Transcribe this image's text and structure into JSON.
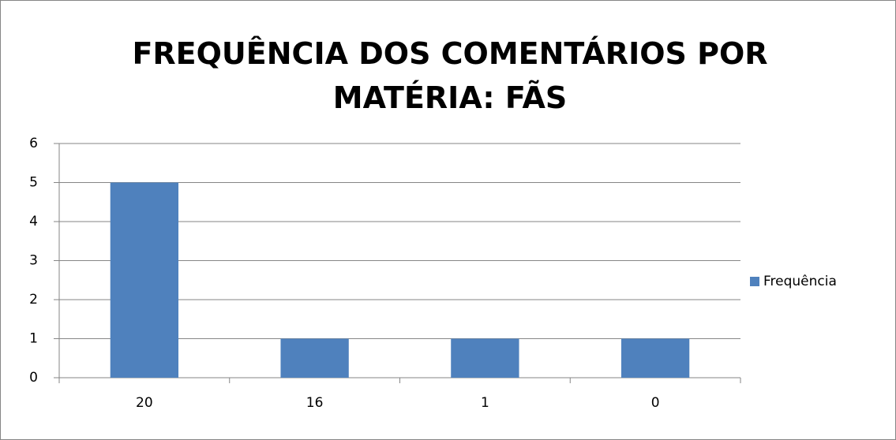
{
  "chart_data": {
    "type": "bar",
    "title": "FREQUÊNCIA DOS COMENTÁRIOS POR MATÉRIA: FÃS",
    "categories": [
      "20",
      "16",
      "1",
      "0"
    ],
    "series": [
      {
        "name": "Frequência",
        "color": "#4f81bd",
        "values": [
          5,
          1,
          1,
          1
        ]
      }
    ],
    "ylim": [
      0,
      6
    ],
    "yticks": [
      0,
      1,
      2,
      3,
      4,
      5,
      6
    ],
    "grid": true,
    "legend": "right"
  }
}
